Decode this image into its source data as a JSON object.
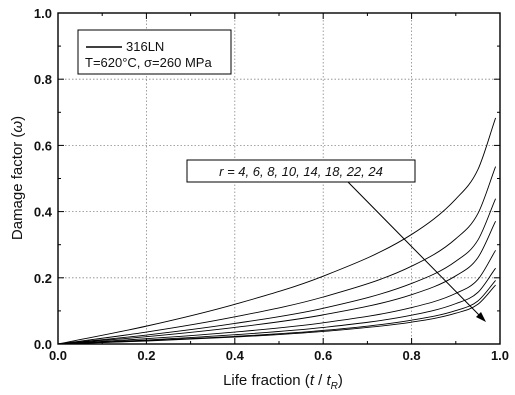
{
  "chart_data": {
    "type": "line",
    "title": "",
    "xlabel": "Life fraction (t / t_R)",
    "ylabel": "Damage factor (ω)",
    "xlim": [
      0.0,
      1.0
    ],
    "ylim": [
      0.0,
      1.0
    ],
    "xticks": [
      "0.0",
      "0.2",
      "0.4",
      "0.6",
      "0.8",
      "1.0"
    ],
    "yticks": [
      "0.0",
      "0.2",
      "0.4",
      "0.6",
      "0.8",
      "1.0"
    ],
    "grid": true,
    "legend": {
      "position": "top-left",
      "entries": [
        "316LN",
        "T=620°C, σ=260 MPa"
      ]
    },
    "annotation": "r = 4, 6, 8, 10, 14, 18, 22, 24",
    "r_values": [
      4,
      6,
      8,
      10,
      14,
      18,
      22,
      24
    ],
    "x": [
      0.0,
      0.2,
      0.4,
      0.6,
      0.8,
      0.9,
      0.95,
      0.99
    ],
    "series": [
      {
        "values": [
          0.0,
          0.054,
          0.12,
          0.205,
          0.331,
          0.438,
          0.527,
          0.683
        ]
      },
      {
        "values": [
          0.0,
          0.036,
          0.082,
          0.142,
          0.235,
          0.318,
          0.394,
          0.536
        ]
      },
      {
        "values": [
          0.0,
          0.027,
          0.062,
          0.108,
          0.183,
          0.25,
          0.314,
          0.439
        ]
      },
      {
        "values": [
          0.0,
          0.022,
          0.05,
          0.088,
          0.149,
          0.206,
          0.261,
          0.371
        ]
      },
      {
        "values": [
          0.0,
          0.016,
          0.036,
          0.064,
          0.11,
          0.153,
          0.195,
          0.283
        ]
      },
      {
        "values": [
          0.0,
          0.012,
          0.028,
          0.05,
          0.087,
          0.122,
          0.156,
          0.229
        ]
      },
      {
        "values": [
          0.0,
          0.01,
          0.023,
          0.041,
          0.072,
          0.101,
          0.13,
          0.192
        ]
      },
      {
        "values": [
          0.0,
          0.009,
          0.021,
          0.038,
          0.066,
          0.093,
          0.12,
          0.178
        ]
      }
    ]
  }
}
